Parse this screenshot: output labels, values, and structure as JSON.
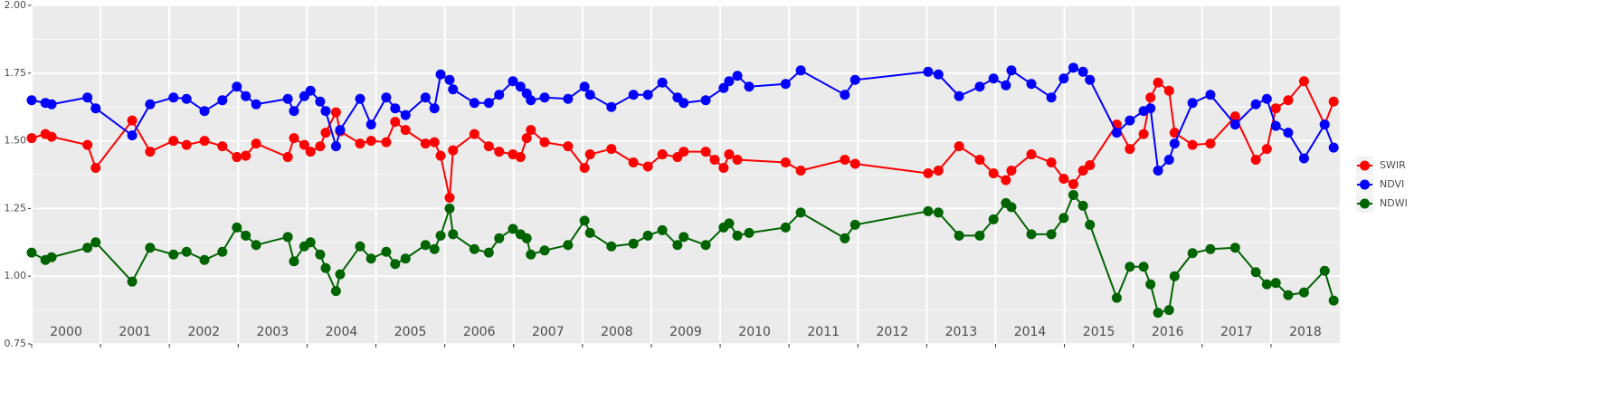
{
  "chart_data": {
    "type": "line",
    "grid": true,
    "legend": "right",
    "xlim": [
      2000,
      2019
    ],
    "xticks": [
      2000,
      2001,
      2002,
      2003,
      2004,
      2005,
      2006,
      2007,
      2008,
      2009,
      2010,
      2011,
      2012,
      2013,
      2014,
      2015,
      2016,
      2017,
      2018
    ],
    "ylim": [
      0.75,
      2.0
    ],
    "yticks": [
      {
        "value": 0.75,
        "label": "0.75"
      },
      {
        "value": 1,
        "label": "1.00"
      },
      {
        "value": 1.25,
        "label": "1.25"
      },
      {
        "value": 1.5,
        "label": "1.50"
      },
      {
        "value": 1.75,
        "label": "1.75"
      },
      {
        "value": 2,
        "label": "2.00"
      }
    ],
    "series": [
      {
        "name": "SWIR",
        "color": "#ff0000",
        "x": [
          2000.0,
          2000.2,
          2000.29,
          2000.81,
          2000.93,
          2001.46,
          2001.72,
          2002.06,
          2002.25,
          2002.51,
          2002.77,
          2002.98,
          2003.11,
          2003.26,
          2003.72,
          2003.81,
          2003.96,
          2004.05,
          2004.19,
          2004.27,
          2004.42,
          2004.48,
          2004.77,
          2004.93,
          2005.15,
          2005.28,
          2005.43,
          2005.72,
          2005.85,
          2005.94,
          2006.07,
          2006.12,
          2006.43,
          2006.64,
          2006.79,
          2006.99,
          2007.1,
          2007.19,
          2007.25,
          2007.45,
          2007.79,
          2008.03,
          2008.11,
          2008.42,
          2008.74,
          2008.95,
          2009.16,
          2009.38,
          2009.47,
          2009.79,
          2009.92,
          2010.05,
          2010.13,
          2010.25,
          2010.95,
          2011.17,
          2011.81,
          2011.96,
          2013.02,
          2013.17,
          2013.47,
          2013.77,
          2013.97,
          2014.15,
          2014.23,
          2014.52,
          2014.81,
          2014.99,
          2015.13,
          2015.27,
          2015.37,
          2015.76,
          2015.95,
          2016.15,
          2016.25,
          2016.36,
          2016.52,
          2016.6,
          2016.86,
          2017.12,
          2017.48,
          2017.78,
          2017.94,
          2018.07,
          2018.25,
          2018.48,
          2018.78,
          2018.91
        ],
        "values": [
          1.51,
          1.525,
          1.515,
          1.485,
          1.4,
          1.575,
          1.46,
          1.5,
          1.485,
          1.5,
          1.48,
          1.44,
          1.445,
          1.49,
          1.44,
          1.51,
          1.485,
          1.46,
          1.48,
          1.53,
          1.605,
          1.535,
          1.49,
          1.5,
          1.495,
          1.57,
          1.54,
          1.49,
          1.495,
          1.445,
          1.29,
          1.465,
          1.525,
          1.48,
          1.46,
          1.45,
          1.44,
          1.51,
          1.54,
          1.495,
          1.48,
          1.4,
          1.45,
          1.47,
          1.42,
          1.405,
          1.45,
          1.44,
          1.46,
          1.46,
          1.43,
          1.4,
          1.45,
          1.43,
          1.42,
          1.39,
          1.43,
          1.415,
          1.38,
          1.39,
          1.48,
          1.43,
          1.38,
          1.355,
          1.39,
          1.45,
          1.42,
          1.36,
          1.34,
          1.39,
          1.41,
          1.56,
          1.47,
          1.525,
          1.66,
          1.715,
          1.685,
          1.53,
          1.485,
          1.49,
          1.59,
          1.43,
          1.47,
          1.62,
          1.65,
          1.72,
          1.56,
          1.645
        ]
      },
      {
        "name": "NDVI",
        "color": "#0000ff",
        "x": [
          2000.0,
          2000.2,
          2000.29,
          2000.81,
          2000.93,
          2001.46,
          2001.72,
          2002.06,
          2002.25,
          2002.51,
          2002.77,
          2002.98,
          2003.11,
          2003.26,
          2003.72,
          2003.81,
          2003.96,
          2004.05,
          2004.19,
          2004.27,
          2004.42,
          2004.48,
          2004.77,
          2004.93,
          2005.15,
          2005.28,
          2005.43,
          2005.72,
          2005.85,
          2005.94,
          2006.07,
          2006.12,
          2006.43,
          2006.64,
          2006.79,
          2006.99,
          2007.1,
          2007.19,
          2007.25,
          2007.45,
          2007.79,
          2008.03,
          2008.11,
          2008.42,
          2008.74,
          2008.95,
          2009.16,
          2009.38,
          2009.47,
          2009.79,
          2010.05,
          2010.13,
          2010.25,
          2010.42,
          2010.95,
          2011.17,
          2011.81,
          2011.96,
          2013.02,
          2013.17,
          2013.47,
          2013.77,
          2013.97,
          2014.15,
          2014.23,
          2014.52,
          2014.81,
          2014.99,
          2015.13,
          2015.27,
          2015.37,
          2015.76,
          2015.95,
          2016.15,
          2016.25,
          2016.36,
          2016.52,
          2016.6,
          2016.86,
          2017.12,
          2017.48,
          2017.78,
          2017.94,
          2018.07,
          2018.25,
          2018.48,
          2018.78,
          2018.91
        ],
        "values": [
          1.65,
          1.64,
          1.635,
          1.66,
          1.62,
          1.52,
          1.635,
          1.66,
          1.655,
          1.61,
          1.65,
          1.7,
          1.665,
          1.635,
          1.655,
          1.61,
          1.665,
          1.685,
          1.645,
          1.61,
          1.48,
          1.54,
          1.655,
          1.56,
          1.66,
          1.62,
          1.595,
          1.66,
          1.62,
          1.745,
          1.725,
          1.69,
          1.64,
          1.64,
          1.67,
          1.72,
          1.7,
          1.675,
          1.65,
          1.66,
          1.655,
          1.7,
          1.67,
          1.625,
          1.67,
          1.67,
          1.715,
          1.66,
          1.64,
          1.65,
          1.695,
          1.72,
          1.74,
          1.7,
          1.71,
          1.76,
          1.67,
          1.725,
          1.755,
          1.745,
          1.665,
          1.7,
          1.73,
          1.705,
          1.76,
          1.71,
          1.66,
          1.73,
          1.77,
          1.755,
          1.725,
          1.53,
          1.575,
          1.61,
          1.62,
          1.39,
          1.43,
          1.49,
          1.64,
          1.67,
          1.56,
          1.635,
          1.655,
          1.555,
          1.53,
          1.435,
          1.56,
          1.475
        ]
      },
      {
        "name": "NDWI",
        "color": "#006400",
        "x": [
          2000.0,
          2000.2,
          2000.29,
          2000.81,
          2000.93,
          2001.46,
          2001.72,
          2002.06,
          2002.25,
          2002.51,
          2002.77,
          2002.98,
          2003.11,
          2003.26,
          2003.72,
          2003.81,
          2003.96,
          2004.05,
          2004.19,
          2004.27,
          2004.42,
          2004.48,
          2004.77,
          2004.93,
          2005.15,
          2005.28,
          2005.43,
          2005.72,
          2005.85,
          2005.94,
          2006.07,
          2006.12,
          2006.43,
          2006.64,
          2006.79,
          2006.99,
          2007.1,
          2007.19,
          2007.25,
          2007.45,
          2007.79,
          2008.03,
          2008.11,
          2008.42,
          2008.74,
          2008.95,
          2009.16,
          2009.38,
          2009.47,
          2009.79,
          2010.05,
          2010.13,
          2010.25,
          2010.42,
          2010.95,
          2011.17,
          2011.81,
          2011.96,
          2013.02,
          2013.17,
          2013.47,
          2013.77,
          2013.97,
          2014.15,
          2014.23,
          2014.52,
          2014.81,
          2014.99,
          2015.13,
          2015.27,
          2015.37,
          2015.76,
          2015.95,
          2016.15,
          2016.25,
          2016.36,
          2016.52,
          2016.6,
          2016.86,
          2017.12,
          2017.48,
          2017.78,
          2017.94,
          2018.07,
          2018.25,
          2018.48,
          2018.78,
          2018.91
        ],
        "values": [
          1.087,
          1.06,
          1.07,
          1.105,
          1.125,
          0.98,
          1.105,
          1.08,
          1.09,
          1.06,
          1.09,
          1.18,
          1.15,
          1.115,
          1.145,
          1.055,
          1.11,
          1.125,
          1.08,
          1.03,
          0.945,
          1.007,
          1.11,
          1.065,
          1.09,
          1.045,
          1.065,
          1.115,
          1.1,
          1.15,
          1.25,
          1.155,
          1.1,
          1.087,
          1.14,
          1.175,
          1.155,
          1.14,
          1.08,
          1.095,
          1.115,
          1.205,
          1.16,
          1.11,
          1.12,
          1.15,
          1.17,
          1.115,
          1.145,
          1.115,
          1.18,
          1.195,
          1.15,
          1.16,
          1.18,
          1.235,
          1.14,
          1.19,
          1.24,
          1.235,
          1.15,
          1.15,
          1.21,
          1.27,
          1.255,
          1.155,
          1.155,
          1.215,
          1.3,
          1.26,
          1.19,
          0.92,
          1.035,
          1.035,
          0.97,
          0.865,
          0.875,
          1.0,
          1.085,
          1.1,
          1.105,
          1.015,
          0.97,
          0.975,
          0.93,
          0.94,
          1.02,
          0.91
        ]
      }
    ]
  }
}
